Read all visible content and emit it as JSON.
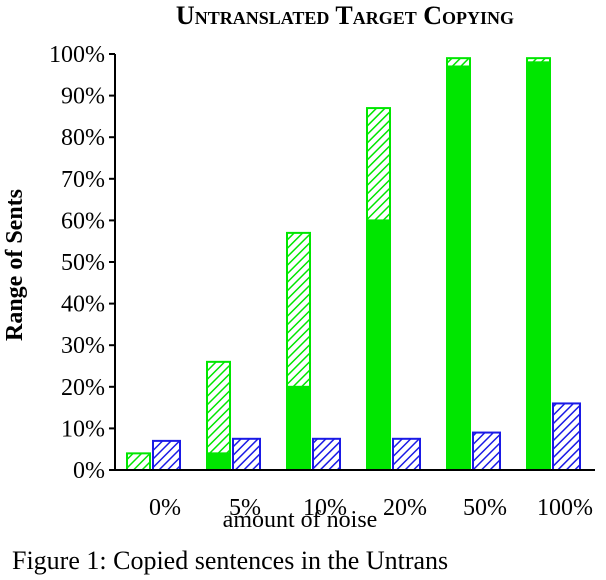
{
  "chart_data": {
    "type": "bar",
    "title": "Untranslated Target Copying",
    "xlabel": "amount of noise",
    "ylabel": "Range of Sents",
    "categories": [
      "0%",
      "5%",
      "10%",
      "20%",
      "50%",
      "100%"
    ],
    "ylim": [
      0,
      100
    ],
    "yticks": [
      "0%",
      "10%",
      "20%",
      "30%",
      "40%",
      "50%",
      "60%",
      "70%",
      "80%",
      "90%",
      "100%"
    ],
    "grid": false,
    "series": [
      {
        "values": [
          0,
          4,
          20,
          60,
          97,
          98
        ],
        "color": "#00e600",
        "fill": "solid"
      },
      {
        "values": [
          4,
          22,
          37,
          27,
          2,
          1
        ],
        "color": "#00e600",
        "fill": "hatched"
      },
      {
        "values": [
          7,
          7.5,
          7.5,
          7.5,
          9,
          16
        ],
        "color": "#1a1ae6",
        "fill": "hatched"
      }
    ]
  },
  "caption": "Figure 1:   Copied sentences in the Untrans"
}
